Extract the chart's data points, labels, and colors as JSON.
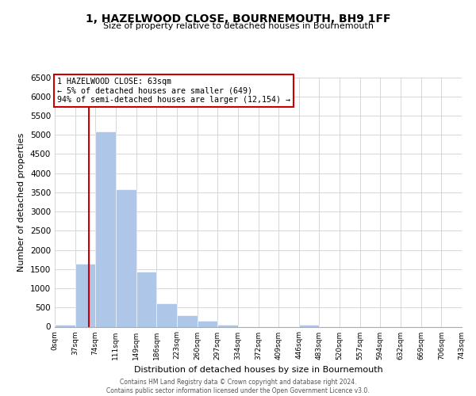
{
  "title": "1, HAZELWOOD CLOSE, BOURNEMOUTH, BH9 1FF",
  "subtitle": "Size of property relative to detached houses in Bournemouth",
  "xlabel": "Distribution of detached houses by size in Bournemouth",
  "ylabel": "Number of detached properties",
  "bin_edges": [
    0,
    37,
    74,
    111,
    149,
    186,
    223,
    260,
    297,
    334,
    372,
    409,
    446,
    483,
    520,
    557,
    594,
    632,
    669,
    706,
    743
  ],
  "bin_labels": [
    "0sqm",
    "37sqm",
    "74sqm",
    "111sqm",
    "149sqm",
    "186sqm",
    "223sqm",
    "260sqm",
    "297sqm",
    "334sqm",
    "372sqm",
    "409sqm",
    "446sqm",
    "483sqm",
    "520sqm",
    "557sqm",
    "594sqm",
    "632sqm",
    "669sqm",
    "706sqm",
    "743sqm"
  ],
  "counts": [
    60,
    1650,
    5080,
    3580,
    1430,
    615,
    300,
    150,
    60,
    0,
    0,
    0,
    60,
    0,
    0,
    0,
    0,
    0,
    0,
    0
  ],
  "bar_color": "#aec6e8",
  "bar_edge_color": "#aec6e8",
  "property_line_x": 63,
  "property_line_color": "#cc0000",
  "annotation_line1": "1 HAZELWOOD CLOSE: 63sqm",
  "annotation_line2": "← 5% of detached houses are smaller (649)",
  "annotation_line3": "94% of semi-detached houses are larger (12,154) →",
  "annotation_box_color": "#ffffff",
  "annotation_box_edge": "#cc0000",
  "ylim": [
    0,
    6500
  ],
  "yticks": [
    0,
    500,
    1000,
    1500,
    2000,
    2500,
    3000,
    3500,
    4000,
    4500,
    5000,
    5500,
    6000,
    6500
  ],
  "footer_line1": "Contains HM Land Registry data © Crown copyright and database right 2024.",
  "footer_line2": "Contains public sector information licensed under the Open Government Licence v3.0.",
  "background_color": "#ffffff",
  "grid_color": "#d0d0d0"
}
